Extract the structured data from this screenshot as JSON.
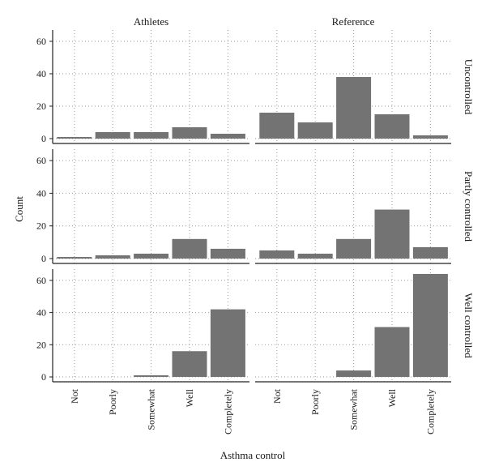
{
  "chart_data": {
    "type": "bar",
    "xlabel": "Asthma control",
    "ylabel": "Count",
    "ylim": [
      0,
      67
    ],
    "yticks": [
      "0",
      "20",
      "40",
      "60"
    ],
    "grid": true,
    "columns": [
      "Athletes",
      "Reference"
    ],
    "rows": [
      "Uncontrolled",
      "Partly controlled",
      "Well controlled"
    ],
    "categories": [
      "Not",
      "Poorly",
      "Somewhat",
      "Well",
      "Completely"
    ],
    "bar_color": "#737373",
    "panels": [
      {
        "row": "Uncontrolled",
        "column": "Athletes",
        "values": [
          1,
          4,
          4,
          7,
          3
        ]
      },
      {
        "row": "Uncontrolled",
        "column": "Reference",
        "values": [
          16,
          10,
          38,
          15,
          2
        ]
      },
      {
        "row": "Partly controlled",
        "column": "Athletes",
        "values": [
          1,
          2,
          3,
          12,
          6
        ]
      },
      {
        "row": "Partly controlled",
        "column": "Reference",
        "values": [
          5,
          3,
          12,
          30,
          7
        ]
      },
      {
        "row": "Well controlled",
        "column": "Athletes",
        "values": [
          0,
          0,
          1,
          16,
          42
        ]
      },
      {
        "row": "Well controlled",
        "column": "Reference",
        "values": [
          0,
          0,
          4,
          31,
          64
        ]
      }
    ]
  }
}
